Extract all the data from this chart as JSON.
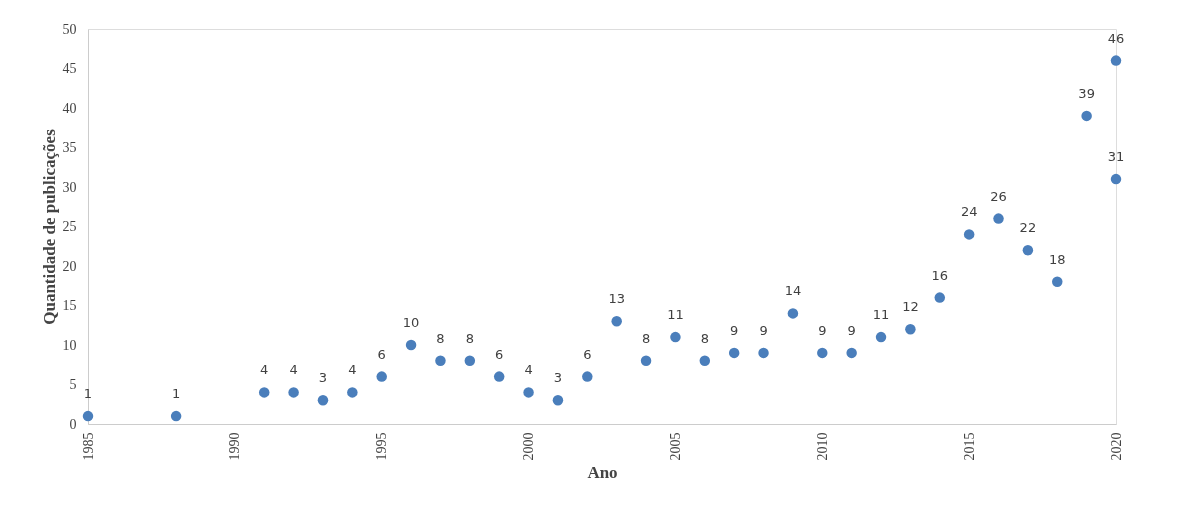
{
  "chart_data": {
    "type": "scatter",
    "xlabel": "Ano",
    "ylabel": "Quantidade de publicações",
    "x": [
      1985,
      1988,
      1991,
      1992,
      1993,
      1994,
      1995,
      1996,
      1997,
      1998,
      1999,
      2000,
      2001,
      2002,
      2003,
      2004,
      2005,
      2006,
      2007,
      2008,
      2009,
      2010,
      2011,
      2012,
      2013,
      2014,
      2015,
      2016,
      2017,
      2018,
      2019,
      2020,
      2020
    ],
    "series": [
      {
        "color": "#4a7ebb",
        "values": [
          1,
          1,
          4,
          4,
          3,
          4,
          6,
          10,
          8,
          8,
          6,
          4,
          3,
          6,
          13,
          8,
          11,
          8,
          9,
          9,
          14,
          9,
          9,
          11,
          12,
          16,
          24,
          26,
          22,
          18,
          39,
          46,
          31
        ]
      }
    ],
    "xlim": [
      1985,
      2020
    ],
    "xticks": [
      1985,
      1990,
      1995,
      2000,
      2005,
      2010,
      2015,
      2020
    ],
    "ylim": [
      0,
      50
    ],
    "yticks": [
      0,
      5,
      10,
      15,
      20,
      25,
      30,
      35,
      40,
      45,
      50
    ],
    "data_labels": true,
    "marker": "circle",
    "grid": false
  }
}
